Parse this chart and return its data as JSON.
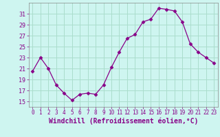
{
  "x": [
    0,
    1,
    2,
    3,
    4,
    5,
    6,
    7,
    8,
    9,
    10,
    11,
    12,
    13,
    14,
    15,
    16,
    17,
    18,
    19,
    20,
    21,
    22,
    23
  ],
  "y": [
    20.5,
    23.0,
    21.0,
    18.0,
    16.5,
    15.2,
    16.3,
    16.5,
    16.3,
    18.0,
    21.2,
    24.0,
    26.5,
    27.2,
    29.5,
    30.0,
    32.0,
    31.8,
    31.5,
    29.5,
    25.5,
    24.0,
    23.0,
    22.0
  ],
  "line_color": "#880088",
  "marker": "D",
  "marker_size": 2.5,
  "bg_color": "#cef5f0",
  "grid_color": "#aaddcc",
  "xlabel": "Windchill (Refroidissement éolien,°C)",
  "xlabel_color": "#880088",
  "ylabel_ticks": [
    15,
    17,
    19,
    21,
    23,
    25,
    27,
    29,
    31
  ],
  "ylim": [
    14.0,
    33.0
  ],
  "xlim": [
    -0.5,
    23.5
  ],
  "tick_color": "#880088",
  "ytick_fontsize": 6.0,
  "xtick_fontsize": 5.5,
  "xlabel_fontsize": 7.0
}
